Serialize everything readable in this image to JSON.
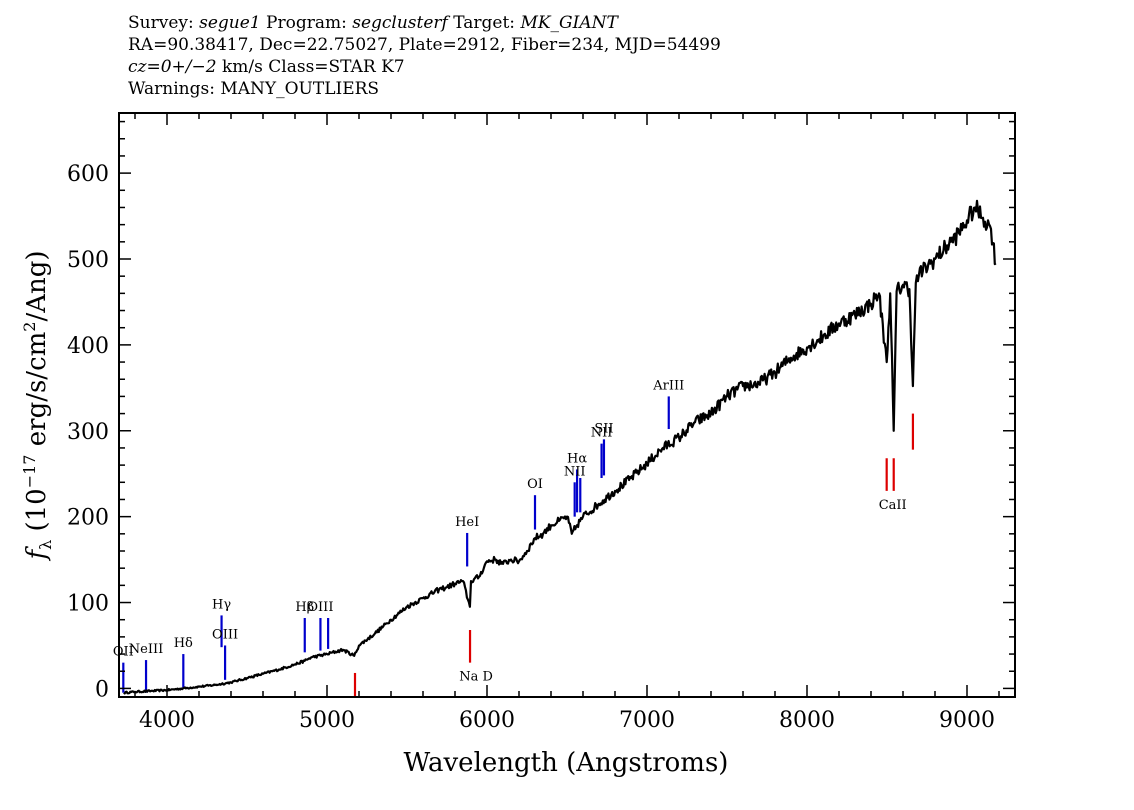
{
  "header": {
    "survey_key": "Survey:",
    "survey": "segue1",
    "program_key": "Program:",
    "program": "segclusterf",
    "target_key": "Target:",
    "target": "MK_GIANT",
    "line2": "RA=90.38417, Dec=22.75027, Plate=2912, Fiber=234, MJD=54499",
    "cz": "cz=0+/−2",
    "line3_rest": " km/s Class=STAR K7",
    "line4": "Warnings: MANY_OUTLIERS"
  },
  "chart_data": {
    "type": "line",
    "xlabel": "Wavelength (Angstroms)",
    "ylabel": "fλ (10⁻¹⁷ erg/s/cm²/Ang)",
    "xlim": [
      3700,
      9300
    ],
    "ylim": [
      -10,
      670
    ],
    "x_ticks": [
      4000,
      5000,
      6000,
      7000,
      8000,
      9000
    ],
    "y_ticks": [
      0,
      100,
      200,
      300,
      400,
      500,
      600
    ],
    "series": [
      {
        "color": "#000000",
        "x": [
          3730,
          3800,
          3900,
          4000,
          4100,
          4200,
          4300,
          4400,
          4500,
          4600,
          4700,
          4800,
          4860,
          4900,
          5000,
          5100,
          5170,
          5200,
          5300,
          5400,
          5500,
          5600,
          5700,
          5750,
          5800,
          5850,
          5893,
          5900,
          5950,
          6000,
          6050,
          6100,
          6150,
          6200,
          6250,
          6300,
          6350,
          6400,
          6450,
          6500,
          6530,
          6563,
          6600,
          6700,
          6800,
          6900,
          7000,
          7100,
          7200,
          7300,
          7400,
          7500,
          7600,
          7700,
          7800,
          7900,
          8000,
          8100,
          8200,
          8300,
          8400,
          8450,
          8498,
          8520,
          8542,
          8560,
          8600,
          8640,
          8662,
          8680,
          8700,
          8800,
          8900,
          8950,
          9000,
          9050,
          9100,
          9150,
          9180
        ],
        "y": [
          -5,
          -4,
          -3,
          -2,
          0,
          2,
          4,
          7,
          12,
          17,
          22,
          28,
          32,
          36,
          40,
          45,
          38,
          50,
          64,
          80,
          95,
          105,
          115,
          118,
          122,
          125,
          95,
          125,
          130,
          148,
          150,
          145,
          150,
          148,
          160,
          175,
          180,
          190,
          195,
          200,
          180,
          190,
          200,
          215,
          230,
          245,
          262,
          280,
          292,
          310,
          320,
          340,
          352,
          355,
          368,
          385,
          397,
          410,
          425,
          435,
          448,
          460,
          380,
          460,
          300,
          462,
          470,
          465,
          352,
          472,
          482,
          500,
          520,
          530,
          545,
          560,
          548,
          535,
          495
        ]
      }
    ],
    "emission_lines": [
      {
        "label": "OII",
        "x": 3727,
        "y0": -5,
        "y1": 30
      },
      {
        "label": "NeIII",
        "x": 3869,
        "y0": -5,
        "y1": 33
      },
      {
        "label": "Hδ",
        "x": 4102,
        "y0": 0,
        "y1": 40
      },
      {
        "label": "Hγ",
        "x": 4341,
        "y0": 48,
        "y1": 85
      },
      {
        "label": "OIII",
        "x": 4363,
        "y0": 10,
        "y1": 50
      },
      {
        "label": "Hβ",
        "x": 4861,
        "y0": 42,
        "y1": 82
      },
      {
        "label": "OIII",
        "x": 4959,
        "y0": 44,
        "y1": 82
      },
      {
        "label": "",
        "x": 5007,
        "y0": 46,
        "y1": 82
      },
      {
        "label": "HeI",
        "x": 5876,
        "y0": 142,
        "y1": 181
      },
      {
        "label": "OI",
        "x": 6300,
        "y0": 185,
        "y1": 225
      },
      {
        "label": "NII",
        "x": 6548,
        "y0": 200,
        "y1": 240
      },
      {
        "label": "Hα",
        "x": 6563,
        "y0": 205,
        "y1": 255
      },
      {
        "label": "",
        "x": 6583,
        "y0": 205,
        "y1": 245
      },
      {
        "label": "NII",
        "x": 6716,
        "y0": 245,
        "y1": 285
      },
      {
        "label": "SII",
        "x": 6731,
        "y0": 248,
        "y1": 290
      },
      {
        "label": "ArIII",
        "x": 7136,
        "y0": 302,
        "y1": 340
      }
    ],
    "absorption_lines": [
      {
        "label": "",
        "x": 5175,
        "y0": -10,
        "y1": 18
      },
      {
        "label": "Na D",
        "x": 5894,
        "y0": 30,
        "y1": 68
      },
      {
        "label": "CaII",
        "x": 8498,
        "y0": 230,
        "y1": 268
      },
      {
        "label": "",
        "x": 8542,
        "y0": 230,
        "y1": 268
      },
      {
        "label": "",
        "x": 8662,
        "y0": 278,
        "y1": 320
      }
    ],
    "colors": {
      "spectrum": "#000000",
      "emission": "#0000cc",
      "absorption": "#dd0000",
      "label_color": "#000000"
    }
  }
}
